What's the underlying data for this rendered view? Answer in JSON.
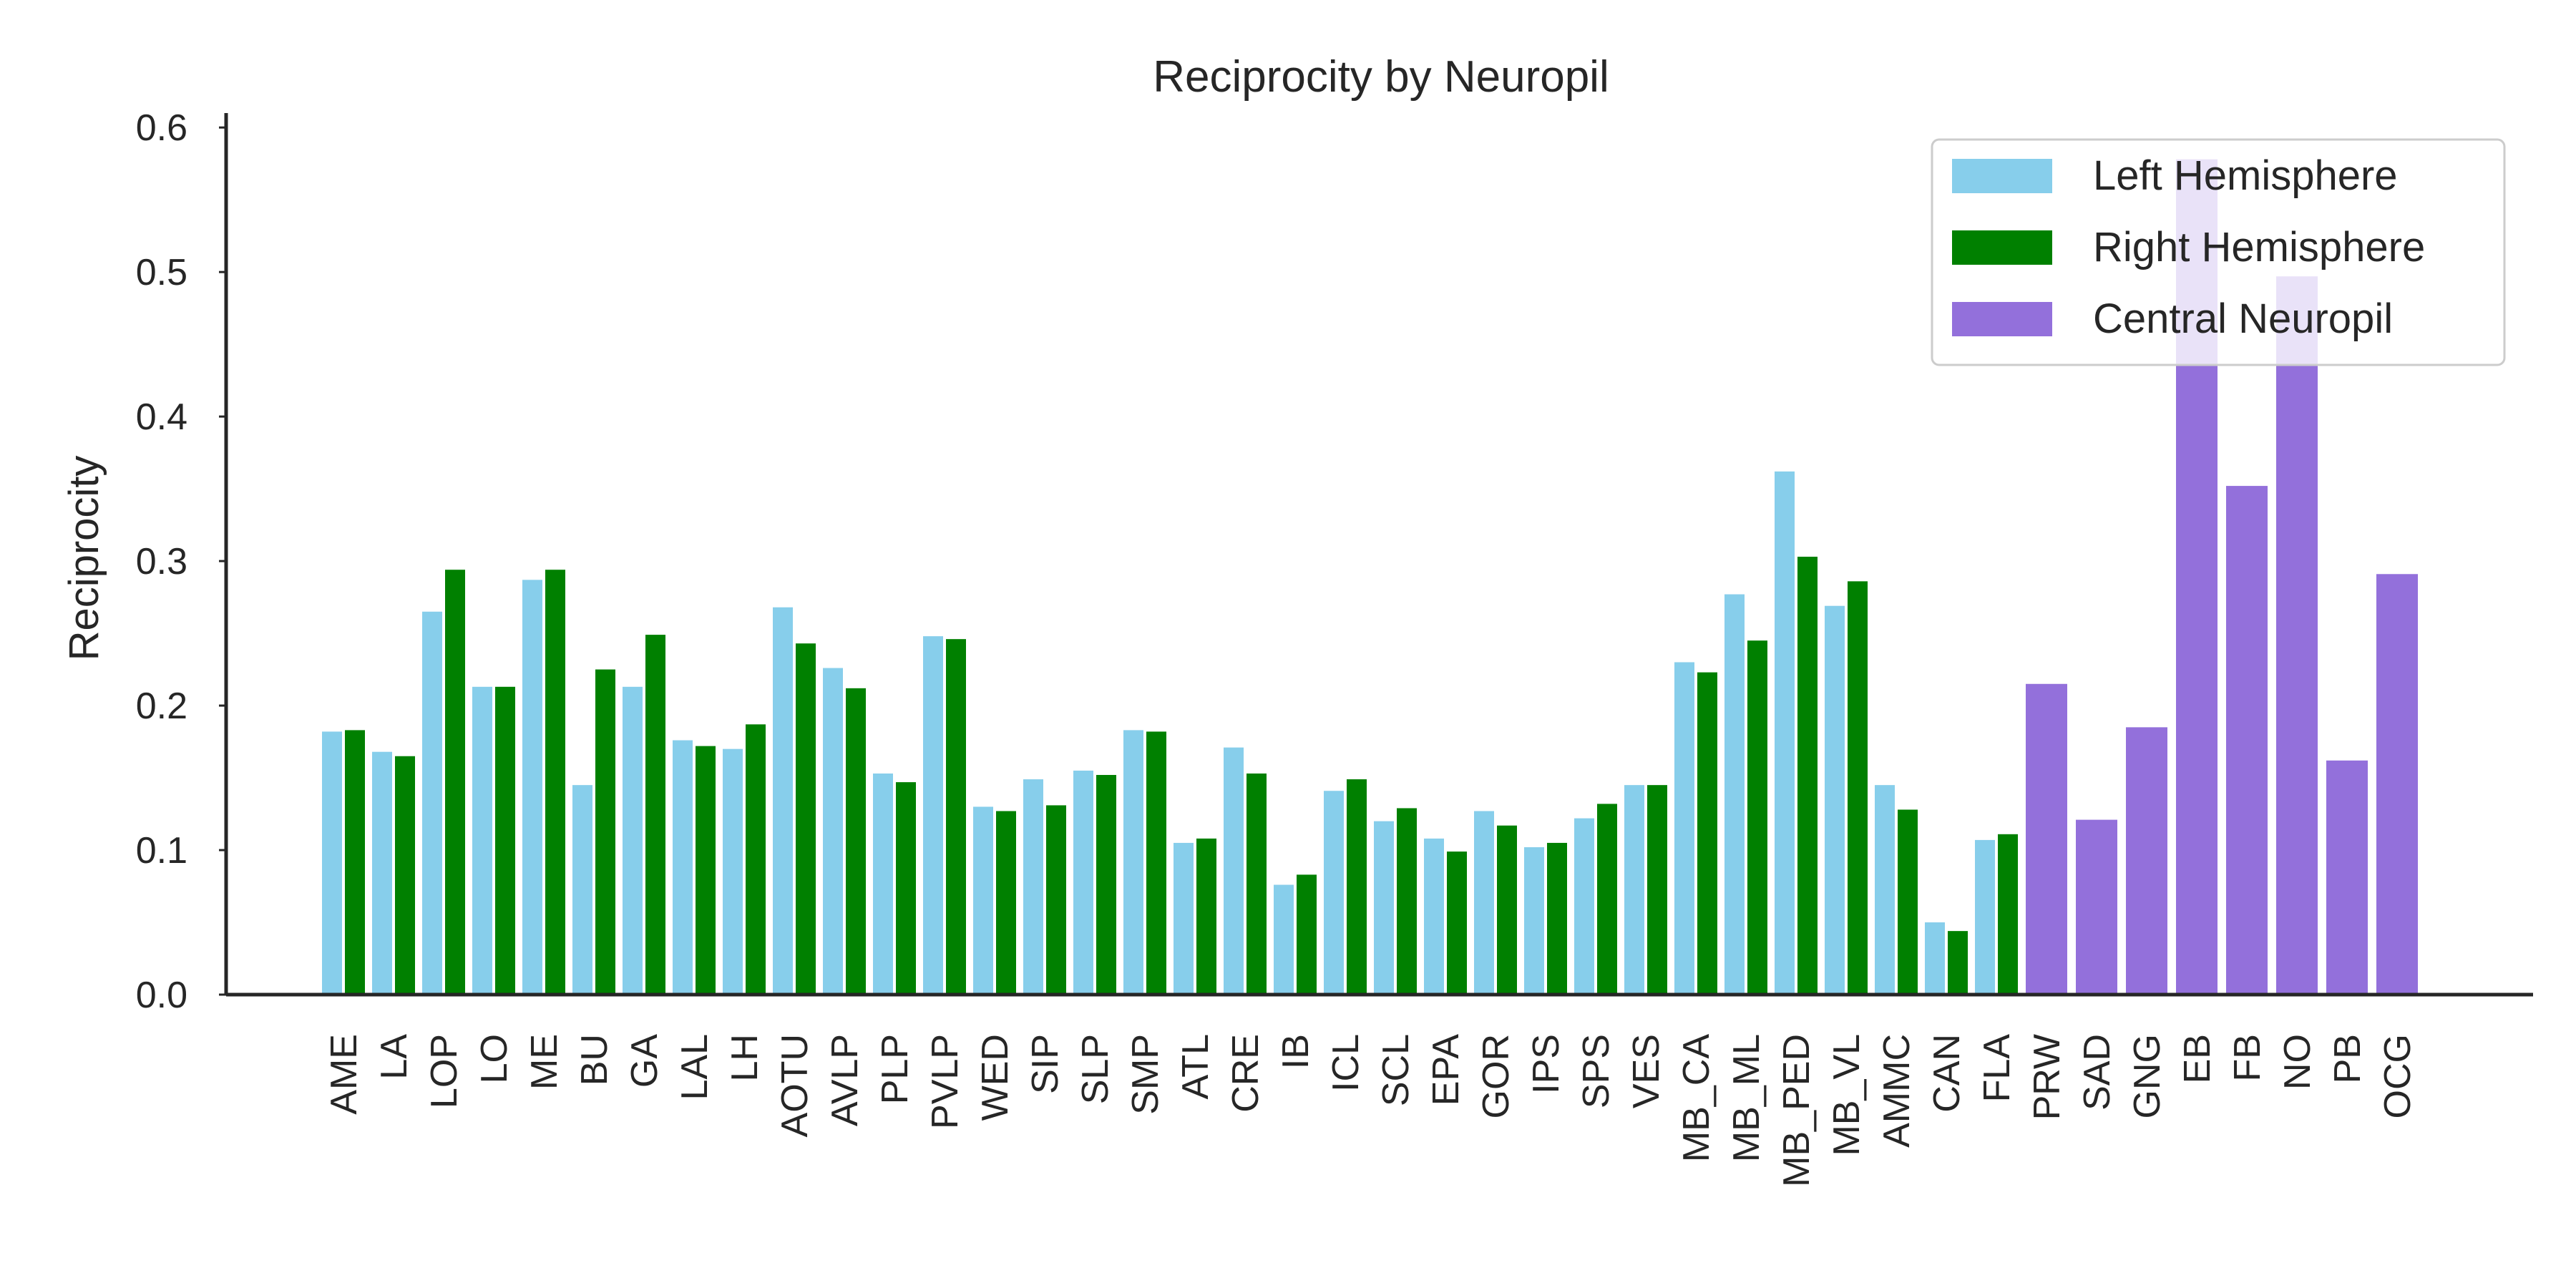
{
  "chart_data": {
    "type": "bar",
    "title": "Reciprocity by Neuropil",
    "xlabel": "",
    "ylabel": "Reciprocity",
    "ylim": [
      0,
      0.61
    ],
    "yticks": [
      "0.0",
      "0.1",
      "0.2",
      "0.3",
      "0.4",
      "0.5",
      "0.6"
    ],
    "ytick_values": [
      0,
      0.1,
      0.2,
      0.3,
      0.4,
      0.5,
      0.6
    ],
    "grid": false,
    "legend_position": "top-right",
    "colors": {
      "left": "#87ceeb",
      "right": "#008000",
      "central": "#9370db"
    },
    "legend": [
      "Left Hemisphere",
      "Right Hemisphere",
      "Central Neuropil"
    ],
    "paired_categories": [
      "AME",
      "LA",
      "LOP",
      "LO",
      "ME",
      "BU",
      "GA",
      "LAL",
      "LH",
      "AOTU",
      "AVLP",
      "PLP",
      "PVLP",
      "WED",
      "SIP",
      "SLP",
      "SMP",
      "ATL",
      "CRE",
      "IB",
      "ICL",
      "SCL",
      "EPA",
      "GOR",
      "IPS",
      "SPS",
      "VES",
      "MB_CA",
      "MB_ML",
      "MB_PED",
      "MB_VL",
      "AMMC",
      "CAN",
      "FLA"
    ],
    "series": [
      {
        "name": "Left Hemisphere",
        "values": [
          0.182,
          0.168,
          0.265,
          0.213,
          0.287,
          0.145,
          0.213,
          0.176,
          0.17,
          0.268,
          0.226,
          0.153,
          0.248,
          0.13,
          0.149,
          0.155,
          0.183,
          0.105,
          0.171,
          0.076,
          0.141,
          0.12,
          0.108,
          0.127,
          0.102,
          0.122,
          0.145,
          0.23,
          0.277,
          0.362,
          0.269,
          0.145,
          0.05,
          0.107
        ]
      },
      {
        "name": "Right Hemisphere",
        "values": [
          0.183,
          0.165,
          0.294,
          0.213,
          0.294,
          0.225,
          0.249,
          0.172,
          0.187,
          0.243,
          0.212,
          0.147,
          0.246,
          0.127,
          0.131,
          0.152,
          0.182,
          0.108,
          0.153,
          0.083,
          0.149,
          0.129,
          0.099,
          0.117,
          0.105,
          0.132,
          0.145,
          0.223,
          0.245,
          0.303,
          0.286,
          0.128,
          0.044,
          0.111
        ]
      }
    ],
    "central_categories": [
      "PRW",
      "SAD",
      "GNG",
      "EB",
      "FB",
      "NO",
      "PB",
      "OCG"
    ],
    "central_values": [
      0.215,
      0.121,
      0.185,
      0.578,
      0.352,
      0.497,
      0.162,
      0.291
    ]
  }
}
